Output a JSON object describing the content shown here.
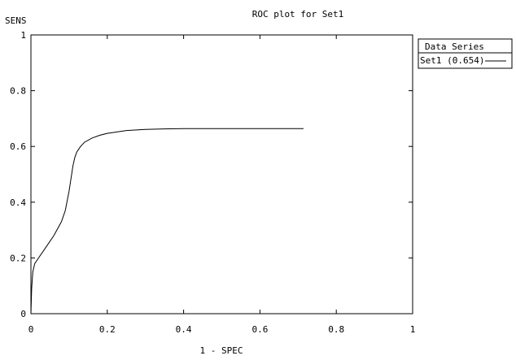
{
  "chart_data": {
    "type": "line",
    "title": "ROC plot for Set1",
    "xlabel": "1 - SPEC",
    "ylabel": "SENS",
    "xlim": [
      0,
      1
    ],
    "ylim": [
      0,
      1
    ],
    "x_ticks": [
      "0",
      "0.2",
      "0.4",
      "0.6",
      "0.8",
      "1"
    ],
    "y_ticks": [
      "0",
      "0.2",
      "0.4",
      "0.6",
      "0.8",
      "1"
    ],
    "grid": false,
    "legend": {
      "title": "Data Series",
      "position": "right",
      "entries": [
        "Set1 (0.654)"
      ]
    },
    "series": [
      {
        "name": "Set1 (0.654)",
        "color": "#000000",
        "x": [
          0,
          0.002,
          0.005,
          0.01,
          0.02,
          0.04,
          0.06,
          0.08,
          0.09,
          0.1,
          0.11,
          0.115,
          0.12,
          0.13,
          0.14,
          0.16,
          0.18,
          0.2,
          0.25,
          0.3,
          0.35,
          0.4,
          0.5,
          0.6,
          0.714
        ],
        "y": [
          0,
          0.09,
          0.15,
          0.18,
          0.2,
          0.24,
          0.28,
          0.33,
          0.37,
          0.44,
          0.53,
          0.56,
          0.58,
          0.6,
          0.615,
          0.63,
          0.64,
          0.647,
          0.657,
          0.661,
          0.663,
          0.664,
          0.664,
          0.664,
          0.664
        ]
      }
    ]
  }
}
